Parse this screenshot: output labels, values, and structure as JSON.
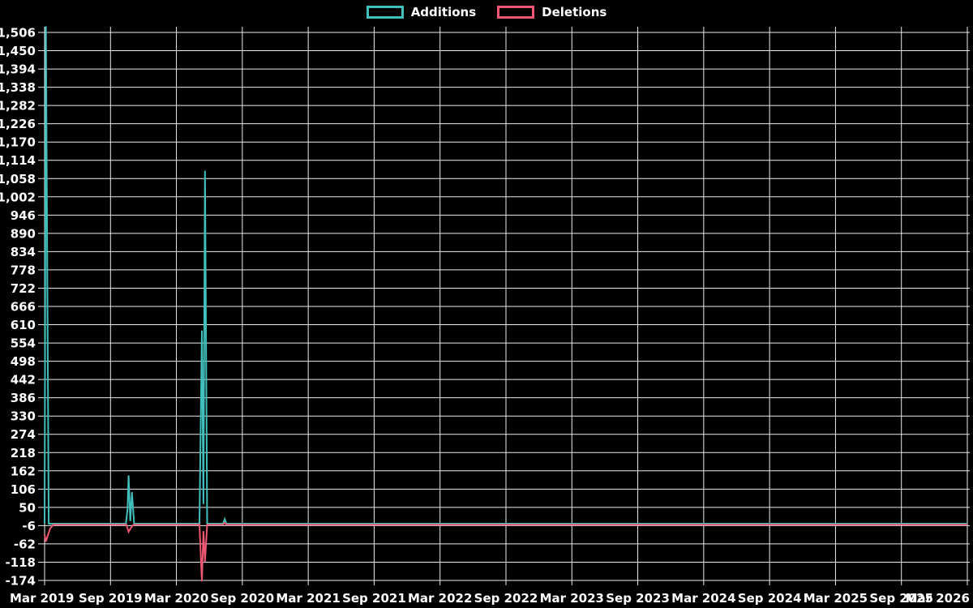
{
  "page": {
    "background": "#000000",
    "text_color": "#ffffff"
  },
  "legend": {
    "items": [
      {
        "label": "Additions",
        "color": "#41bfbc"
      },
      {
        "label": "Deletions",
        "color": "#ee5872"
      }
    ]
  },
  "chart_data": {
    "type": "line",
    "title": "",
    "xlabel": "",
    "ylabel": "",
    "grid": true,
    "grid_color": "#ececec",
    "background": "#000000",
    "legend_position": "top-center",
    "x_unit": "months since Mar 2019",
    "x_axis": {
      "tick_labels": [
        "Mar 2019",
        "Sep 2019",
        "Mar 2020",
        "Sep 2020",
        "Mar 2021",
        "Sep 2021",
        "Mar 2022",
        "Sep 2022",
        "Mar 2023",
        "Sep 2023",
        "Mar 2024",
        "Sep 2024",
        "Mar 2025",
        "Sep 2025",
        "Mar 2026"
      ],
      "tick_months": [
        0,
        6,
        12,
        18,
        24,
        30,
        36,
        42,
        48,
        54,
        60,
        66,
        72,
        78,
        84
      ]
    },
    "y_axis": {
      "min": -174,
      "max": 1506,
      "step": 56,
      "tick_values": [
        1506,
        1450,
        1394,
        1338,
        1282,
        1226,
        1170,
        1114,
        1058,
        1002,
        946,
        890,
        834,
        778,
        722,
        666,
        610,
        554,
        498,
        442,
        386,
        330,
        274,
        218,
        162,
        106,
        50,
        -6,
        -62,
        -118,
        -174
      ]
    },
    "series": [
      {
        "name": "Additions",
        "color": "#41bfbc",
        "points": [
          [
            0,
            0
          ],
          [
            0.12,
            1525
          ],
          [
            0.38,
            0
          ],
          [
            7.4,
            0
          ],
          [
            7.55,
            45
          ],
          [
            7.65,
            148
          ],
          [
            7.8,
            8
          ],
          [
            7.95,
            97
          ],
          [
            8.15,
            0
          ],
          [
            14.1,
            0
          ],
          [
            14.32,
            592
          ],
          [
            14.46,
            60
          ],
          [
            14.6,
            1082
          ],
          [
            14.8,
            0
          ],
          [
            16.25,
            0
          ],
          [
            16.4,
            14
          ],
          [
            16.55,
            0
          ],
          [
            84,
            0
          ]
        ]
      },
      {
        "name": "Deletions",
        "color": "#ee5872",
        "points": [
          [
            0,
            -30
          ],
          [
            0.12,
            -52
          ],
          [
            0.5,
            -12
          ],
          [
            0.8,
            0
          ],
          [
            7.45,
            0
          ],
          [
            7.65,
            -22
          ],
          [
            7.9,
            -8
          ],
          [
            8.1,
            0
          ],
          [
            14.1,
            0
          ],
          [
            14.32,
            -174
          ],
          [
            14.46,
            -20
          ],
          [
            14.6,
            -114
          ],
          [
            14.8,
            0
          ],
          [
            16.25,
            0
          ],
          [
            16.4,
            6
          ],
          [
            16.55,
            0
          ],
          [
            84,
            0
          ]
        ]
      }
    ]
  }
}
